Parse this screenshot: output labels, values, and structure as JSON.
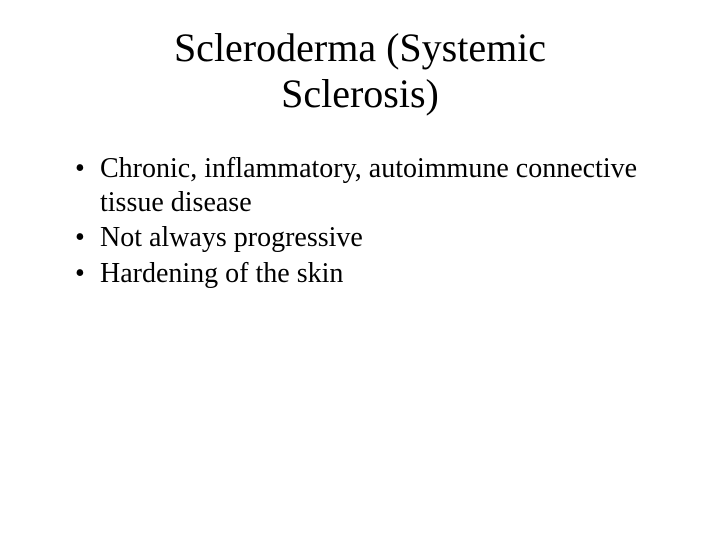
{
  "slide": {
    "title": "Scleroderma (Systemic Sclerosis)",
    "bullets": [
      "Chronic, inflammatory, autoimmune connective tissue disease",
      "Not always progressive",
      "Hardening of the skin"
    ],
    "styling": {
      "background_color": "#ffffff",
      "text_color": "#000000",
      "font_family": "Times New Roman",
      "title_fontsize": 40,
      "body_fontsize": 28,
      "bullet_char": "•"
    }
  }
}
